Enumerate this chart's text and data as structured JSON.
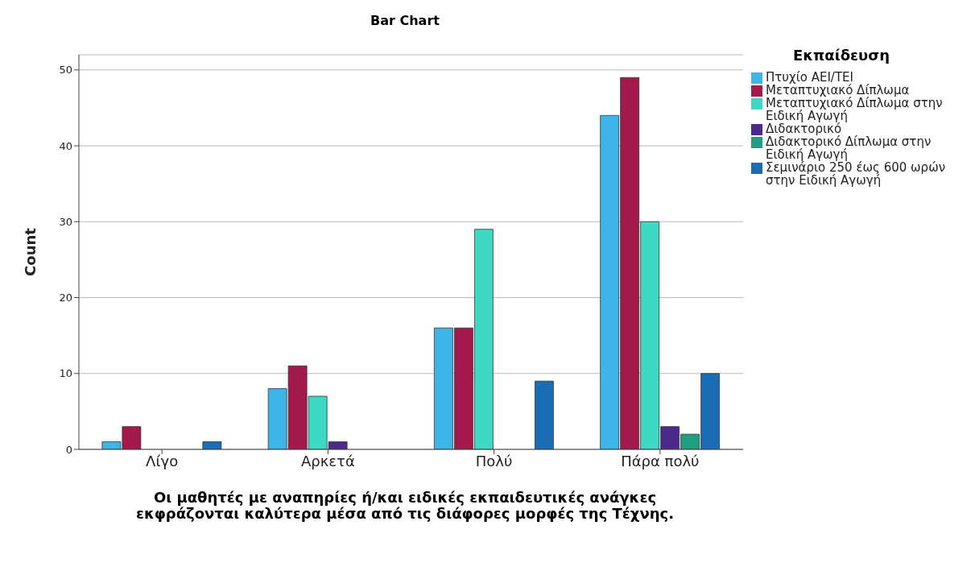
{
  "chart_data": {
    "type": "bar",
    "title": "Bar Chart",
    "xlabel": "Οι μαθητές με αναπηρίες ή/και ειδικές εκπαιδευτικές ανάγκες εκφράζονται καλύτερα μέσα από τις διάφορες μορφές της Τέχνης.",
    "ylabel": "Count",
    "legend_title": "Εκπαίδευση",
    "categories": [
      "Λίγο",
      "Αρκετά",
      "Πολύ",
      "Πάρα πολύ"
    ],
    "series": [
      {
        "name": "Πτυχίο ΑΕΙ/ΤΕΙ",
        "color": "#3fb4e8",
        "values": [
          1,
          8,
          16,
          44
        ]
      },
      {
        "name": "Μεταπτυχιακό Δίπλωμα",
        "color": "#a3194b",
        "values": [
          3,
          11,
          16,
          49
        ]
      },
      {
        "name": "Μεταπτυχιακό Δίπλωμα στην Ειδική Αγωγή",
        "color": "#3fd8c2",
        "values": [
          null,
          7,
          29,
          30
        ]
      },
      {
        "name": "Διδακτορικό",
        "color": "#4b2a8c",
        "values": [
          null,
          1,
          null,
          3
        ]
      },
      {
        "name": "Διδακτορικό Δίπλωμα στην Ειδική Αγωγή",
        "color": "#1f9e80",
        "values": [
          null,
          null,
          null,
          2
        ]
      },
      {
        "name": "Σεμινάριο 250 έως 600 ωρών στην Ειδική Αγωγή",
        "color": "#1a6db5",
        "values": [
          1,
          null,
          9,
          10
        ]
      }
    ],
    "ylim": [
      0,
      52
    ],
    "yticks": [
      0,
      10,
      20,
      30,
      40,
      50
    ],
    "grid": "y",
    "legend": "top right"
  }
}
